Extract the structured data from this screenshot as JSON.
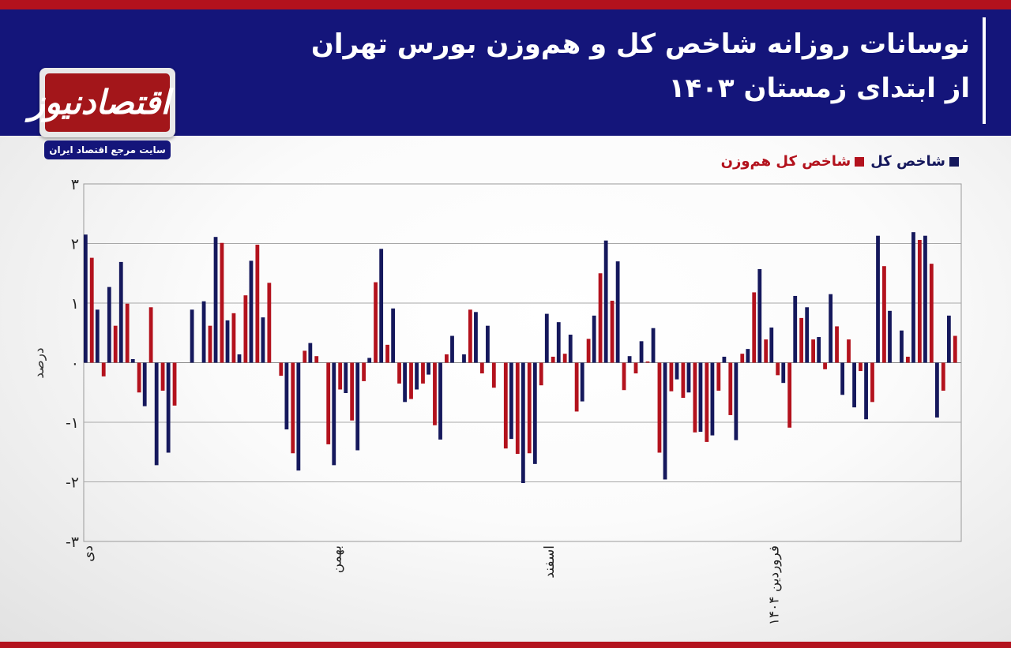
{
  "header": {
    "title_line1": "نوسانات روزانه شاخص کل و هم‌وزن بورس تهران",
    "title_line2": "از ابتدای زمستان ۱۴۰۳"
  },
  "logo": {
    "name": "اقتصادنیوز",
    "tagline": "سایت مرجع اقتصاد ایران"
  },
  "colors": {
    "header_bg": "#14157a",
    "accent_red": "#b3121d",
    "series_total": "#15185c",
    "series_equal": "#b3121d"
  },
  "chart_data": {
    "type": "bar",
    "ylabel": "درصد",
    "ylim": [
      -3,
      3
    ],
    "yticks": [
      "۳",
      "۲",
      "۱",
      "۰",
      "-۱",
      "-۲",
      "-۳"
    ],
    "grid": true,
    "legend_position": "top-right",
    "month_labels": [
      {
        "label": "دی",
        "index": 0
      },
      {
        "label": "بهمن",
        "index": 21
      },
      {
        "label": "اسفند",
        "index": 39
      },
      {
        "label": "فروردین ۱۴۰۴",
        "index": 58
      }
    ],
    "series": [
      {
        "name": "شاخص کل",
        "values": [
          2.15,
          0.89,
          1.27,
          1.69,
          0.06,
          -0.73,
          -1.72,
          -1.51,
          0,
          0.89,
          1.03,
          2.11,
          0.71,
          0.14,
          1.71,
          0.76,
          0,
          -1.12,
          -1.81,
          0.33,
          0,
          -1.72,
          -0.51,
          -1.47,
          0.08,
          1.91,
          0.91,
          -0.66,
          -0.45,
          -0.2,
          -1.29,
          0.45,
          0.14,
          0.85,
          0.62,
          0,
          -1.28,
          -2.02,
          -1.7,
          0.82,
          0.68,
          0.47,
          -0.65,
          0.79,
          2.05,
          1.7,
          0.11,
          0.36,
          0.58,
          -1.96,
          -0.28,
          -0.5,
          -1.16,
          -1.22,
          0.1,
          -1.3,
          0.23,
          1.57,
          0.59,
          -0.34,
          1.12,
          0.93,
          0.43,
          1.15,
          -0.54,
          -0.75,
          -0.95,
          2.13,
          0.87,
          0.54,
          2.19,
          2.13,
          -0.92,
          0.79
        ]
      },
      {
        "name": "شاخص کل هم‌وزن",
        "values": [
          1.76,
          -0.23,
          0.62,
          0.99,
          -0.5,
          0.93,
          -0.47,
          -0.72,
          0,
          0,
          0.62,
          2.01,
          0.83,
          1.13,
          1.98,
          1.34,
          -0.22,
          -1.52,
          0.2,
          0.11,
          -1.37,
          -0.45,
          -0.97,
          -0.31,
          1.35,
          0.3,
          -0.35,
          -0.61,
          -0.35,
          -1.05,
          0.14,
          0,
          0.89,
          -0.18,
          -0.42,
          -1.44,
          -1.53,
          -1.52,
          -0.38,
          0.1,
          0.15,
          -0.82,
          0.4,
          1.5,
          1.04,
          -0.46,
          -0.18,
          0.02,
          -1.51,
          -0.48,
          -0.59,
          -1.17,
          -1.33,
          -0.47,
          -0.88,
          0.15,
          1.18,
          0.39,
          -0.21,
          -1.09,
          0.75,
          0.39,
          -0.11,
          0.61,
          0.39,
          -0.14,
          -0.66,
          1.62,
          0,
          0.1,
          2.06,
          1.66,
          -0.47,
          0.45
        ]
      }
    ]
  }
}
